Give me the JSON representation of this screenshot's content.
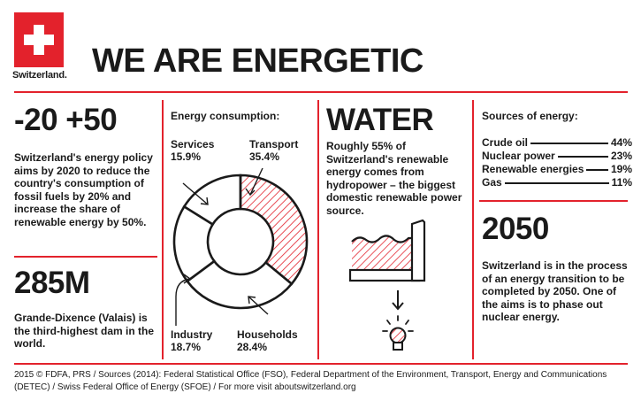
{
  "header": {
    "logo_text": "Switzerland.",
    "title": "WE ARE ENERGETIC"
  },
  "col1": {
    "headline": "-20 +50",
    "text": "Switzerland's energy policy aims by 2020 to reduce the country's consumption of fossil fuels by 20% and increase the share of renewable energy by 50%.",
    "dam_headline": "285M",
    "dam_text": "Grande-Dixence (Valais) is the third-highest dam in the world."
  },
  "consumption": {
    "title": "Energy consumption:",
    "segments": [
      {
        "name": "Services",
        "value": "15.9%",
        "percent": 15.9,
        "hatched": false
      },
      {
        "name": "Transport",
        "value": "35.4%",
        "percent": 35.4,
        "hatched": true
      },
      {
        "name": "Households",
        "value": "28.4%",
        "percent": 28.4,
        "hatched": false
      },
      {
        "name": "Industry",
        "value": "18.7%",
        "percent": 18.7,
        "hatched": false
      }
    ]
  },
  "water": {
    "headline": "WATER",
    "text": "Roughly 55% of Switzerland's renewable energy comes from hydropower – the biggest domestic renewable power source.",
    "icons": [
      "dam-icon",
      "arrow-down-icon",
      "light-bulb-icon"
    ]
  },
  "sources": {
    "title": "Sources of energy:",
    "items": [
      {
        "name": "Crude oil",
        "value": "44%"
      },
      {
        "name": "Nuclear power",
        "value": "23%"
      },
      {
        "name": "Renewable energies",
        "value": "19%"
      },
      {
        "name": "Gas",
        "value": "11%"
      }
    ]
  },
  "transition": {
    "headline": "2050",
    "text": "Switzerland is in the process of an energy transition to be completed by 2050. One of the aims is to phase out nuclear energy."
  },
  "footer": {
    "line1": "2015 © FDFA, PRS / Sources (2014): Federal Statistical Office (FSO), Federal Department of the Environment, Transport, Energy and Communications",
    "line2": "(DETEC) / Swiss Federal Office of Energy (SFOE) / For more visit aboutswitzerland.org"
  },
  "colors": {
    "accent": "#e3222c",
    "text": "#1a1a1a",
    "background": "#ffffff"
  }
}
